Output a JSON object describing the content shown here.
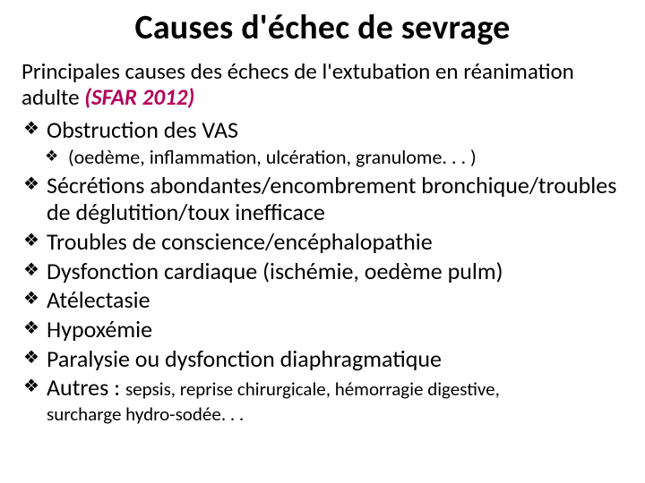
{
  "title": "Causes d'échec de sevrage",
  "subtitle_main": "Principales causes des échecs de l'extubation en réanimation adulte ",
  "subtitle_ref": "(SFAR 2012)",
  "items": {
    "i0": "Obstruction des VAS",
    "i0_sub": "(oedème, inflammation, ulcération, granulome. . . )",
    "i1": "Sécrétions abondantes/encombrement bronchique/troubles de déglutition/toux inefficace",
    "i2": "Troubles de conscience/encéphalopathie",
    "i3": "Dysfonction cardiaque (ischémie, oedème pulm)",
    "i4": "Atélectasie",
    "i5": "Hypoxémie",
    "i6": "Paralysie ou dysfonction diaphragmatique",
    "i7_lead": "Autres : ",
    "i7_tail": "sepsis, reprise chirurgicale, hémorragie digestive,",
    "i7_cont": "surcharge hydro-sodée. . ."
  }
}
